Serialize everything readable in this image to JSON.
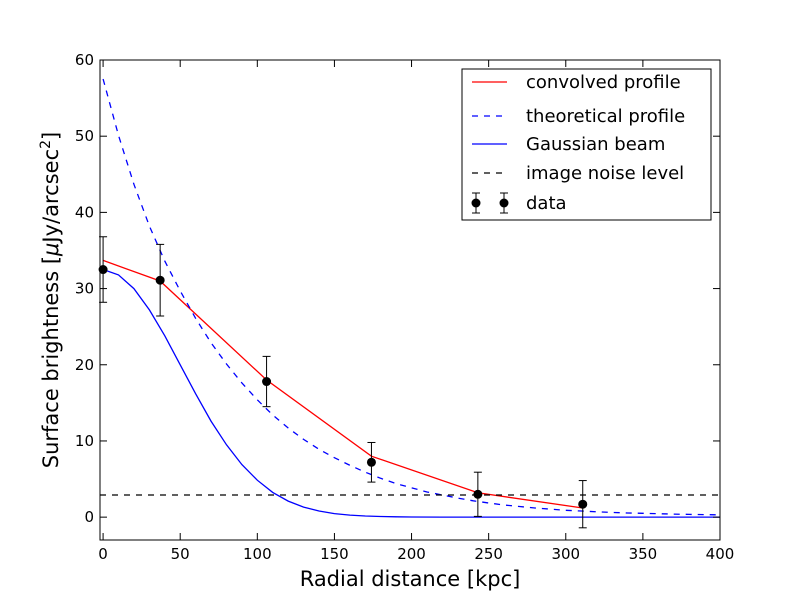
{
  "chart_data": {
    "type": "line",
    "xlabel": "Radial distance [kpc]",
    "ylabel_prefix": "Surface brightness [",
    "ylabel_mu": "μ",
    "ylabel_unit": "Jy/arcsec",
    "ylabel_exp": "2",
    "ylabel_suffix": "]",
    "xlim": [
      -2,
      400
    ],
    "ylim": [
      -3,
      60
    ],
    "xticks": [
      0,
      50,
      100,
      150,
      200,
      250,
      300,
      350,
      400
    ],
    "yticks": [
      0,
      10,
      20,
      30,
      40,
      50,
      60
    ],
    "legend_position": "top-right",
    "series": [
      {
        "name": "convolved profile",
        "style": "solid",
        "color": "#ff0000",
        "x": [
          0,
          37,
          106,
          174,
          243,
          311
        ],
        "y": [
          33.7,
          31.0,
          18.0,
          8.0,
          3.2,
          1.2
        ]
      },
      {
        "name": "theoretical profile",
        "style": "dashed",
        "color": "#0000ff",
        "x": [
          0,
          10,
          20,
          30,
          40,
          50,
          60,
          70,
          80,
          90,
          100,
          110,
          120,
          130,
          140,
          150,
          160,
          170,
          180,
          190,
          200,
          210,
          220,
          230,
          240,
          250,
          260,
          270,
          280,
          290,
          300,
          310,
          320,
          330,
          340,
          350,
          360,
          370,
          380,
          390,
          400
        ],
        "y": [
          57.5,
          50.1,
          43.7,
          38.2,
          33.6,
          29.7,
          26.1,
          22.9,
          20.1,
          17.6,
          15.4,
          13.4,
          11.7,
          10.2,
          8.9,
          7.8,
          6.8,
          5.9,
          5.1,
          4.4,
          3.85,
          3.3,
          2.9,
          2.5,
          2.15,
          1.85,
          1.6,
          1.4,
          1.2,
          1.05,
          0.9,
          0.8,
          0.7,
          0.62,
          0.55,
          0.5,
          0.45,
          0.4,
          0.36,
          0.33,
          0.3
        ]
      },
      {
        "name": "Gaussian beam",
        "style": "solid",
        "color": "#0000ff",
        "x": [
          0,
          10,
          20,
          30,
          40,
          50,
          60,
          70,
          80,
          90,
          100,
          110,
          120,
          130,
          140,
          150,
          160,
          170,
          180,
          190,
          200,
          220,
          240,
          260,
          280,
          300,
          320,
          340,
          360,
          380,
          400
        ],
        "y": [
          32.5,
          31.8,
          30.0,
          27.2,
          23.8,
          20.0,
          16.2,
          12.6,
          9.5,
          6.9,
          4.85,
          3.25,
          2.1,
          1.32,
          0.8,
          0.47,
          0.27,
          0.15,
          0.08,
          0.04,
          0.02,
          0.0,
          0.0,
          0.0,
          0.0,
          0.0,
          0.0,
          0.0,
          0.0,
          0.0,
          0.0
        ]
      },
      {
        "name": "image noise level",
        "style": "dashed",
        "color": "#000000",
        "x": [
          -2,
          400
        ],
        "y": [
          2.9,
          2.9
        ]
      }
    ],
    "data_points": {
      "name": "data",
      "color": "#000000",
      "x": [
        0,
        37,
        106,
        174,
        243,
        311
      ],
      "y": [
        32.5,
        31.1,
        17.8,
        7.2,
        3.0,
        1.7
      ],
      "err": [
        4.3,
        4.7,
        3.3,
        2.6,
        2.9,
        3.1
      ]
    }
  }
}
